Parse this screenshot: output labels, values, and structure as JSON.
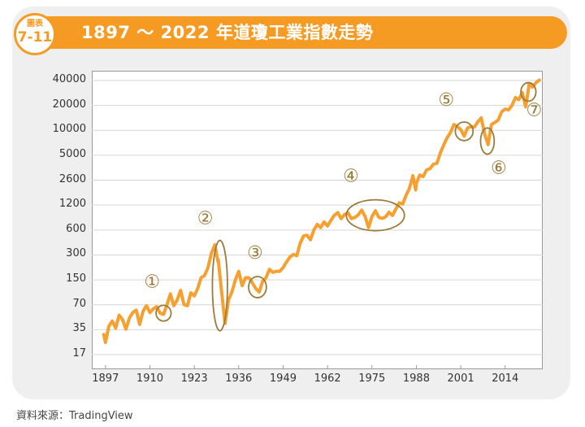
{
  "header": {
    "badge_top": "圖表",
    "badge_number": "7-11",
    "title": "1897 ～ 2022 年道瓊工業指數走勢"
  },
  "source": "資料來源：TradingView",
  "colors": {
    "accent": "#f59a22",
    "line": "#f5a030",
    "annotation": "#9c7b3a"
  },
  "chart_data": {
    "type": "line",
    "y_scale": "log",
    "ylim": [
      17,
      40000
    ],
    "xlim": [
      1893,
      2025
    ],
    "y_ticks": [
      "40000",
      "20000",
      "10000",
      "5000",
      "2600",
      "1200",
      "600",
      "300",
      "150",
      "70",
      "35",
      "17"
    ],
    "x_ticks": [
      "1897",
      "1910",
      "1923",
      "1936",
      "1949",
      "1962",
      "1975",
      "1988",
      "2001",
      "2014"
    ],
    "grid": "horizontal",
    "series": [
      {
        "points": [
          [
            1896.5,
            30
          ],
          [
            1897,
            24
          ],
          [
            1898,
            38
          ],
          [
            1899,
            44
          ],
          [
            1900,
            36
          ],
          [
            1901,
            52
          ],
          [
            1902,
            46
          ],
          [
            1903,
            35
          ],
          [
            1904,
            48
          ],
          [
            1905,
            56
          ],
          [
            1906,
            60
          ],
          [
            1907,
            40
          ],
          [
            1908,
            58
          ],
          [
            1909,
            68
          ],
          [
            1910,
            56
          ],
          [
            1911,
            62
          ],
          [
            1912,
            66
          ],
          [
            1913,
            55
          ],
          [
            1914,
            53
          ],
          [
            1915,
            70
          ],
          [
            1916,
            95
          ],
          [
            1917,
            68
          ],
          [
            1918,
            80
          ],
          [
            1919,
            105
          ],
          [
            1920,
            70
          ],
          [
            1921,
            68
          ],
          [
            1922,
            98
          ],
          [
            1923,
            90
          ],
          [
            1924,
            110
          ],
          [
            1925,
            150
          ],
          [
            1926,
            160
          ],
          [
            1927,
            200
          ],
          [
            1928,
            300
          ],
          [
            1929,
            381
          ],
          [
            1929.9,
            240
          ],
          [
            1930,
            250
          ],
          [
            1931,
            100
          ],
          [
            1932,
            41
          ],
          [
            1933,
            80
          ],
          [
            1934,
            100
          ],
          [
            1935,
            140
          ],
          [
            1936,
            180
          ],
          [
            1937,
            120
          ],
          [
            1938,
            150
          ],
          [
            1939,
            150
          ],
          [
            1940,
            130
          ],
          [
            1941,
            110
          ],
          [
            1942,
            100
          ],
          [
            1943,
            135
          ],
          [
            1944,
            150
          ],
          [
            1945,
            190
          ],
          [
            1946,
            175
          ],
          [
            1947,
            180
          ],
          [
            1948,
            180
          ],
          [
            1949,
            200
          ],
          [
            1950,
            235
          ],
          [
            1951,
            270
          ],
          [
            1952,
            290
          ],
          [
            1953,
            280
          ],
          [
            1954,
            400
          ],
          [
            1955,
            490
          ],
          [
            1956,
            500
          ],
          [
            1957,
            440
          ],
          [
            1958,
            580
          ],
          [
            1959,
            680
          ],
          [
            1960,
            620
          ],
          [
            1961,
            730
          ],
          [
            1962,
            650
          ],
          [
            1963,
            760
          ],
          [
            1964,
            880
          ],
          [
            1965,
            950
          ],
          [
            1966,
            800
          ],
          [
            1967,
            900
          ],
          [
            1968,
            940
          ],
          [
            1969,
            800
          ],
          [
            1970,
            830
          ],
          [
            1971,
            890
          ],
          [
            1972,
            1020
          ],
          [
            1973,
            850
          ],
          [
            1974,
            620
          ],
          [
            1975,
            850
          ],
          [
            1976,
            1000
          ],
          [
            1977,
            830
          ],
          [
            1978,
            805
          ],
          [
            1979,
            840
          ],
          [
            1980,
            960
          ],
          [
            1981,
            875
          ],
          [
            1982,
            1050
          ],
          [
            1983,
            1250
          ],
          [
            1984,
            1210
          ],
          [
            1985,
            1550
          ],
          [
            1986,
            1900
          ],
          [
            1987,
            2700
          ],
          [
            1987.8,
            1800
          ],
          [
            1988,
            2170
          ],
          [
            1989,
            2750
          ],
          [
            1990,
            2630
          ],
          [
            1991,
            3170
          ],
          [
            1992,
            3300
          ],
          [
            1993,
            3750
          ],
          [
            1994,
            3830
          ],
          [
            1995,
            5100
          ],
          [
            1996,
            6450
          ],
          [
            1997,
            7900
          ],
          [
            1998,
            9200
          ],
          [
            1999,
            11500
          ],
          [
            2000,
            10800
          ],
          [
            2001,
            10000
          ],
          [
            2002,
            8300
          ],
          [
            2003,
            10450
          ],
          [
            2004,
            10800
          ],
          [
            2005,
            10700
          ],
          [
            2006,
            12400
          ],
          [
            2007,
            13900
          ],
          [
            2008,
            8800
          ],
          [
            2009,
            6500
          ],
          [
            2009.8,
            10400
          ],
          [
            2010,
            11500
          ],
          [
            2011,
            12200
          ],
          [
            2012,
            13100
          ],
          [
            2013,
            16500
          ],
          [
            2014,
            17800
          ],
          [
            2015,
            17400
          ],
          [
            2016,
            19800
          ],
          [
            2017,
            24700
          ],
          [
            2018,
            23300
          ],
          [
            2019,
            28500
          ],
          [
            2020,
            19000
          ],
          [
            2020.8,
            30600
          ],
          [
            2021,
            36300
          ],
          [
            2022,
            33100
          ],
          [
            2023,
            37600
          ],
          [
            2024,
            40500
          ]
        ]
      }
    ],
    "annotations": [
      {
        "label": "①",
        "x": 1914,
        "y": 55,
        "rx_years": 2.2,
        "ry_factor": 1.25
      },
      {
        "label": "②",
        "x": 1930.5,
        "y": 120,
        "rx_years": 2.2,
        "ry_factor": 3.6
      },
      {
        "label": "③",
        "x": 1941.5,
        "y": 115,
        "rx_years": 2.6,
        "ry_factor": 1.35
      },
      {
        "label": "④",
        "x": 1976,
        "y": 880,
        "rx_years": 8.5,
        "ry_factor": 1.55
      },
      {
        "label": "⑤",
        "x": 2002,
        "y": 9500,
        "rx_years": 2.6,
        "ry_factor": 1.3
      },
      {
        "label": "⑥",
        "x": 2008.8,
        "y": 7200,
        "rx_years": 2.0,
        "ry_factor": 1.45
      },
      {
        "label": "⑦",
        "x": 2020.8,
        "y": 29000,
        "rx_years": 2.2,
        "ry_factor": 1.3
      }
    ]
  }
}
